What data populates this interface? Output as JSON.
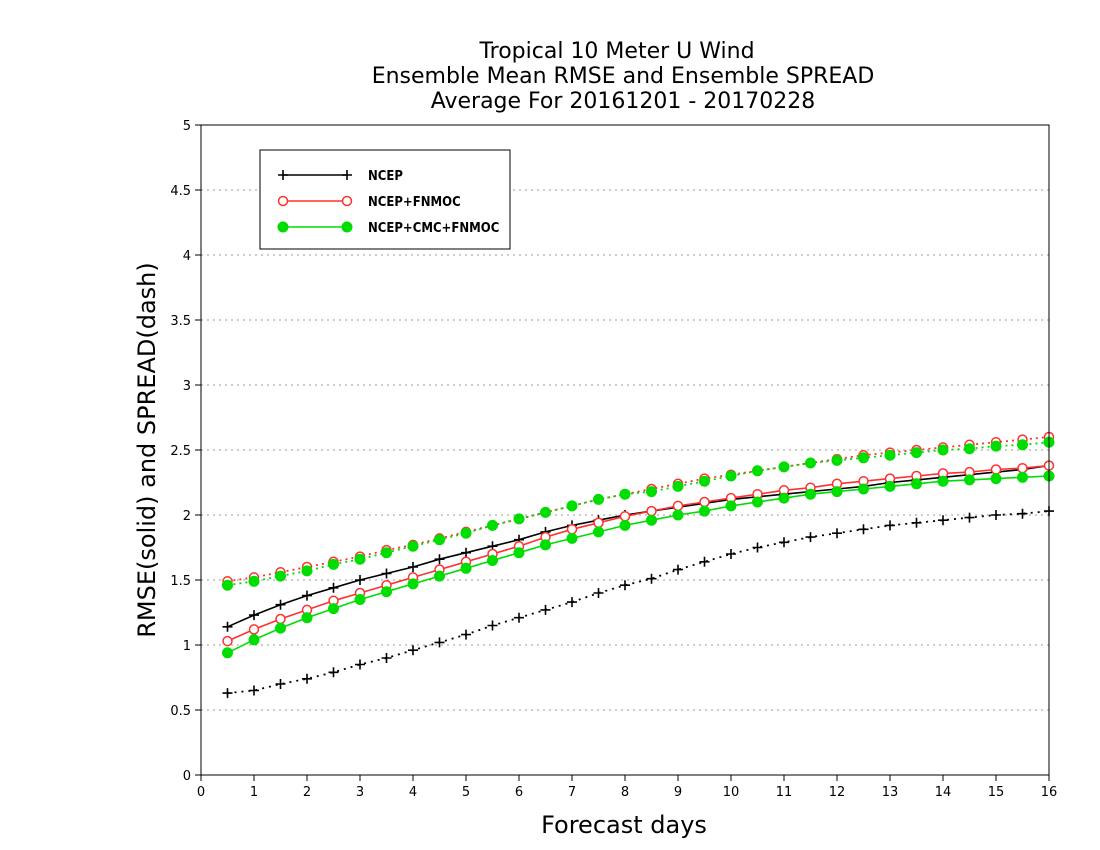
{
  "chart_data": {
    "type": "line",
    "title": [
      "Tropical 10 Meter U Wind",
      "Ensemble Mean RMSE and Ensemble SPREAD",
      "Average For 20161201 - 20170228"
    ],
    "xlabel": "Forecast days",
    "ylabel": "RMSE(solid) and SPREAD(dash)",
    "xlim": [
      0,
      16
    ],
    "ylim": [
      0,
      5
    ],
    "xticks": [
      "0",
      "1",
      "2",
      "3",
      "4",
      "5",
      "6",
      "7",
      "8",
      "9",
      "10",
      "11",
      "12",
      "13",
      "14",
      "15",
      "16"
    ],
    "yticks": [
      "0",
      "0.5",
      "1",
      "1.5",
      "2",
      "2.5",
      "3",
      "3.5",
      "4",
      "4.5",
      "5"
    ],
    "grid": "horizontal-dotted",
    "legend_position": "top-left",
    "x": [
      0.5,
      1,
      1.5,
      2,
      2.5,
      3,
      3.5,
      4,
      4.5,
      5,
      5.5,
      6,
      6.5,
      7,
      7.5,
      8,
      8.5,
      9,
      9.5,
      10,
      10.5,
      11,
      11.5,
      12,
      12.5,
      13,
      13.5,
      14,
      14.5,
      15,
      15.5,
      16
    ],
    "series": [
      {
        "name": "NCEP",
        "kind": "rmse",
        "color": "#000000",
        "marker": "plus",
        "values": [
          1.14,
          1.23,
          1.31,
          1.38,
          1.44,
          1.5,
          1.55,
          1.6,
          1.66,
          1.71,
          1.76,
          1.81,
          1.87,
          1.92,
          1.96,
          2.0,
          2.03,
          2.06,
          2.09,
          2.12,
          2.14,
          2.16,
          2.18,
          2.2,
          2.22,
          2.25,
          2.27,
          2.29,
          2.31,
          2.33,
          2.35,
          2.38
        ]
      },
      {
        "name": "NCEP+FNMOC",
        "kind": "rmse",
        "color": "#ff3030",
        "marker": "open-circle",
        "values": [
          1.03,
          1.12,
          1.2,
          1.27,
          1.34,
          1.4,
          1.46,
          1.52,
          1.58,
          1.64,
          1.7,
          1.76,
          1.83,
          1.89,
          1.94,
          1.99,
          2.03,
          2.07,
          2.1,
          2.13,
          2.16,
          2.19,
          2.21,
          2.24,
          2.26,
          2.28,
          2.3,
          2.32,
          2.33,
          2.35,
          2.36,
          2.38
        ]
      },
      {
        "name": "NCEP+CMC+FNMOC",
        "kind": "rmse",
        "color": "#00dd00",
        "marker": "filled-circle",
        "values": [
          0.94,
          1.04,
          1.13,
          1.21,
          1.28,
          1.35,
          1.41,
          1.47,
          1.53,
          1.59,
          1.65,
          1.71,
          1.77,
          1.82,
          1.87,
          1.92,
          1.96,
          2.0,
          2.03,
          2.07,
          2.1,
          2.13,
          2.16,
          2.18,
          2.2,
          2.22,
          2.24,
          2.26,
          2.27,
          2.28,
          2.29,
          2.3
        ]
      },
      {
        "name": "NCEP",
        "kind": "spread",
        "color": "#000000",
        "marker": "plus",
        "values": [
          0.63,
          0.65,
          0.7,
          0.74,
          0.79,
          0.85,
          0.9,
          0.96,
          1.02,
          1.08,
          1.15,
          1.21,
          1.27,
          1.33,
          1.4,
          1.46,
          1.51,
          1.58,
          1.64,
          1.7,
          1.75,
          1.79,
          1.83,
          1.86,
          1.89,
          1.92,
          1.94,
          1.96,
          1.98,
          2.0,
          2.01,
          2.03
        ]
      },
      {
        "name": "NCEP+FNMOC",
        "kind": "spread",
        "color": "#ff3030",
        "marker": "open-circle",
        "values": [
          1.49,
          1.52,
          1.56,
          1.6,
          1.64,
          1.68,
          1.73,
          1.77,
          1.82,
          1.87,
          1.92,
          1.97,
          2.02,
          2.07,
          2.12,
          2.16,
          2.2,
          2.24,
          2.28,
          2.31,
          2.34,
          2.37,
          2.4,
          2.43,
          2.46,
          2.48,
          2.5,
          2.52,
          2.54,
          2.56,
          2.58,
          2.6
        ]
      },
      {
        "name": "NCEP+CMC+FNMOC",
        "kind": "spread",
        "color": "#00dd00",
        "marker": "filled-circle",
        "values": [
          1.46,
          1.49,
          1.53,
          1.57,
          1.62,
          1.66,
          1.71,
          1.76,
          1.81,
          1.86,
          1.92,
          1.97,
          2.02,
          2.07,
          2.12,
          2.16,
          2.18,
          2.22,
          2.26,
          2.3,
          2.34,
          2.37,
          2.4,
          2.42,
          2.44,
          2.46,
          2.48,
          2.5,
          2.51,
          2.53,
          2.54,
          2.56
        ]
      }
    ],
    "legend": [
      {
        "label": "NCEP",
        "color": "#000000",
        "marker": "plus"
      },
      {
        "label": "NCEP+FNMOC",
        "color": "#ff3030",
        "marker": "open-circle"
      },
      {
        "label": "NCEP+CMC+FNMOC",
        "color": "#00dd00",
        "marker": "filled-circle"
      }
    ]
  }
}
